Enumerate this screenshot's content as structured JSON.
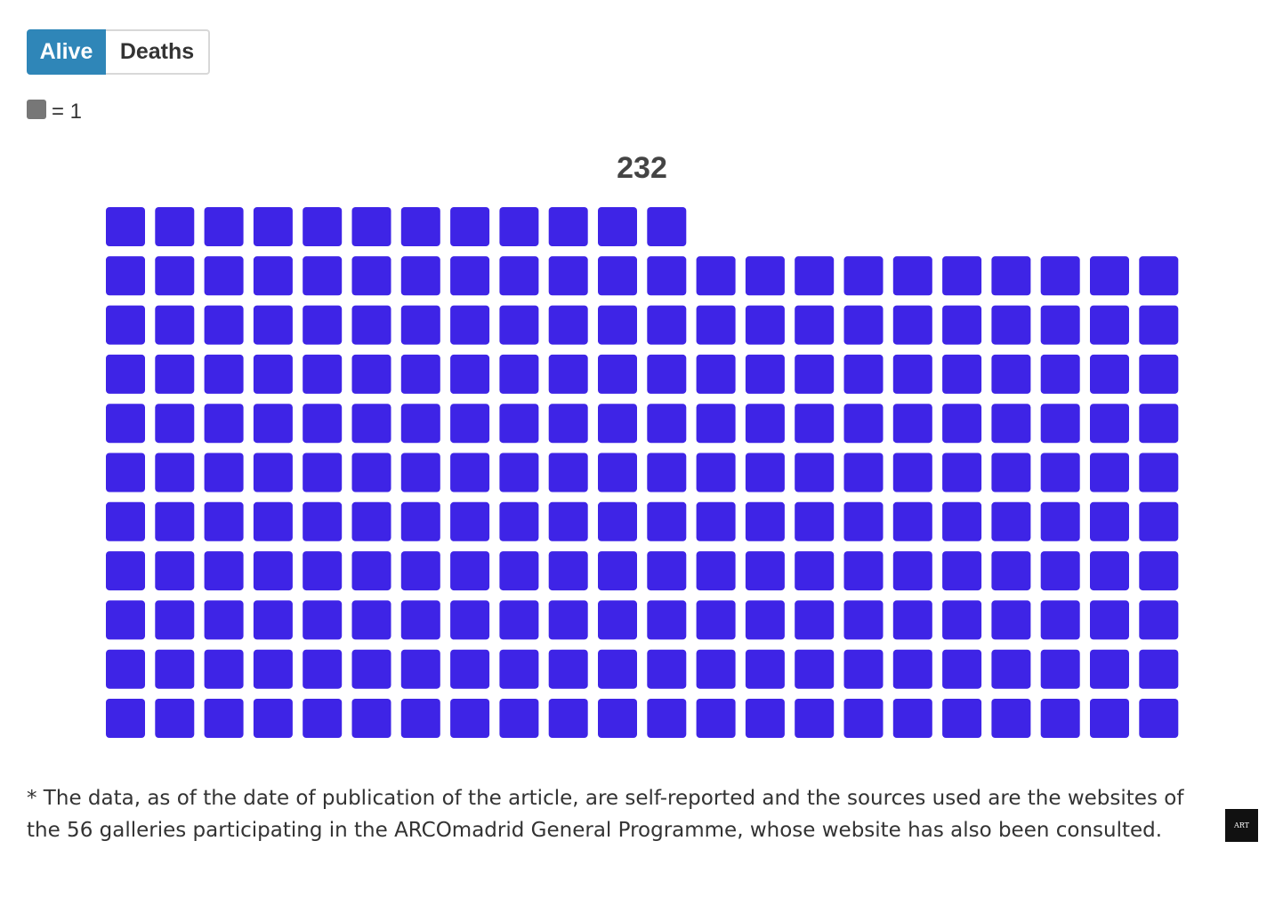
{
  "tabs": [
    {
      "label": "Alive",
      "active": true
    },
    {
      "label": "Deaths",
      "active": false
    }
  ],
  "legend": {
    "text": "= 1",
    "swatch_color": "#777777"
  },
  "chart_data": {
    "type": "waffle",
    "total_label": "232",
    "value": 232,
    "unit_value": 1,
    "columns": 22,
    "square_color": "#3e24e6",
    "fill_order": "bottom-up, left-to-right"
  },
  "footnote": "* The data, as of the date of publication of the article, are self-reported and the sources used are the websites of the 56 galleries participating in the ARCOmadrid General Programme, whose website has also been consulted.",
  "logo": {
    "icon": "publication-logo-icon",
    "text": "ART"
  }
}
